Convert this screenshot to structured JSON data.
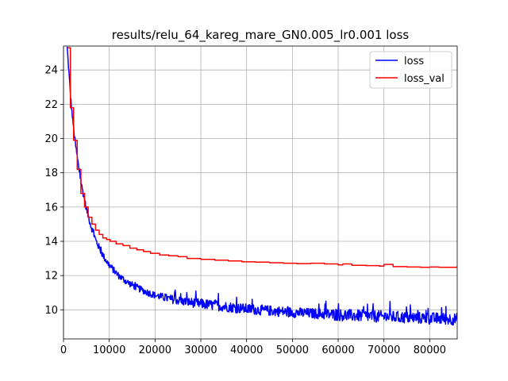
{
  "chart_data": {
    "type": "line",
    "title": "results/relu_64_kareg_mare_GN0.005_lr0.001 loss",
    "xlabel": "",
    "ylabel": "",
    "xlim": [
      0,
      86000
    ],
    "ylim": [
      8.3,
      25.4
    ],
    "xticks": [
      0,
      10000,
      20000,
      30000,
      40000,
      50000,
      60000,
      70000,
      80000
    ],
    "yticks": [
      10,
      12,
      14,
      16,
      18,
      20,
      22,
      24
    ],
    "grid": true,
    "legend_position": "top-right",
    "series": [
      {
        "name": "loss",
        "color": "#0000ff",
        "style": "noisy-line",
        "x": [
          800,
          1200,
          1600,
          2000,
          2500,
          3000,
          3500,
          4000,
          5000,
          6000,
          7000,
          8000,
          9000,
          10000,
          12000,
          14000,
          16000,
          18000,
          20000,
          23000,
          26000,
          30000,
          35000,
          40000,
          45000,
          50000,
          55000,
          60000,
          65000,
          70000,
          75000,
          80000,
          86000
        ],
        "values": [
          25.3,
          23.8,
          22.3,
          21.1,
          19.9,
          18.9,
          18.0,
          17.2,
          15.9,
          14.9,
          14.1,
          13.5,
          13.0,
          12.6,
          12.0,
          11.6,
          11.3,
          11.05,
          10.85,
          10.65,
          10.5,
          10.35,
          10.2,
          10.05,
          9.95,
          9.85,
          9.78,
          9.7,
          9.65,
          9.6,
          9.55,
          9.5,
          9.45
        ],
        "noise_amplitude": [
          0.2,
          0.2,
          0.2,
          0.2,
          0.2,
          0.2,
          0.2,
          0.2,
          0.2,
          0.2,
          0.2,
          0.2,
          0.2,
          0.2,
          0.2,
          0.2,
          0.2,
          0.2,
          0.2,
          0.25,
          0.25,
          0.3,
          0.3,
          0.3,
          0.3,
          0.3,
          0.3,
          0.35,
          0.35,
          0.35,
          0.35,
          0.35,
          0.35
        ]
      },
      {
        "name": "loss_val",
        "color": "#ff0000",
        "style": "step",
        "x": [
          800,
          1500,
          2200,
          3000,
          3800,
          4600,
          5400,
          6200,
          7000,
          7800,
          8600,
          9400,
          10200,
          11500,
          13000,
          14500,
          16000,
          17500,
          19000,
          21000,
          23000,
          25000,
          27000,
          30000,
          33000,
          36000,
          39000,
          42000,
          45000,
          48000,
          51000,
          54000,
          57000,
          60000,
          61000,
          63000,
          66000,
          69000,
          70000,
          72000,
          75000,
          78000,
          80000,
          82000,
          86000
        ],
        "values": [
          25.3,
          21.8,
          19.9,
          18.2,
          16.8,
          16.0,
          15.4,
          15.0,
          14.65,
          14.4,
          14.2,
          14.1,
          14.0,
          13.85,
          13.75,
          13.6,
          13.5,
          13.4,
          13.3,
          13.2,
          13.15,
          13.1,
          13.0,
          12.95,
          12.9,
          12.85,
          12.8,
          12.78,
          12.75,
          12.72,
          12.7,
          12.72,
          12.68,
          12.62,
          12.68,
          12.6,
          12.58,
          12.55,
          12.65,
          12.52,
          12.5,
          12.48,
          12.5,
          12.48,
          12.55
        ]
      }
    ]
  }
}
